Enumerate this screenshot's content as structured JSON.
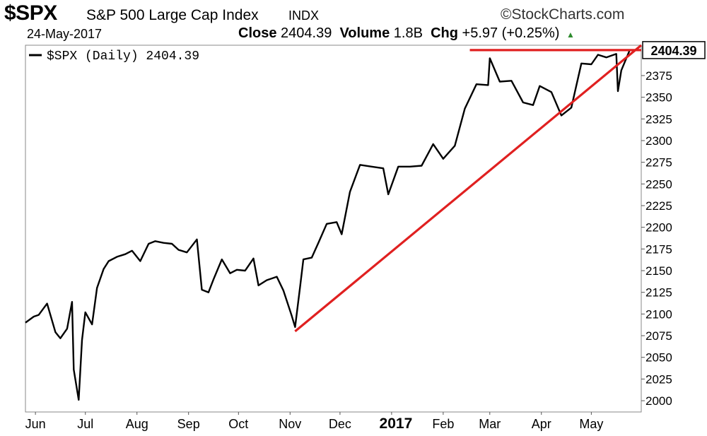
{
  "header": {
    "symbol": "$SPX",
    "name": "S&P 500 Large Cap Index",
    "exchange": "INDX",
    "brand": "©StockCharts.com",
    "date": "24-May-2017",
    "close_label": "Close",
    "close_value": "2404.39",
    "volume_label": "Volume",
    "volume_value": "1.8B",
    "chg_label": "Chg",
    "chg_value": "+5.97 (+0.25%)",
    "chg_arrow": "▲"
  },
  "colors": {
    "price": "#000000",
    "trendline": "#e02020",
    "up": "#2e8b2e"
  },
  "chart_data": {
    "type": "line",
    "legend": "$SPX (Daily) 2404.39",
    "last_value_label": "2404.39",
    "x_ticks": [
      "Jun",
      "Jul",
      "Aug",
      "Sep",
      "Oct",
      "Nov",
      "Dec",
      "2017",
      "Feb",
      "Mar",
      "Apr",
      "May"
    ],
    "x_ticks_bold": [
      "2017"
    ],
    "y_ticks": [
      2000,
      2025,
      2050,
      2075,
      2100,
      2125,
      2150,
      2175,
      2200,
      2225,
      2250,
      2275,
      2300,
      2325,
      2350,
      2375
    ],
    "ylim": [
      1987,
      2410
    ],
    "xlim": [
      "2016-05-26",
      "2017-05-31"
    ],
    "grid": false,
    "legend_position": "top-left",
    "series": [
      {
        "name": "$SPX (Daily)",
        "x": [
          "2016-05-26",
          "2016-05-31",
          "2016-06-03",
          "2016-06-08",
          "2016-06-13",
          "2016-06-16",
          "2016-06-20",
          "2016-06-23",
          "2016-06-24",
          "2016-06-27",
          "2016-06-29",
          "2016-07-01",
          "2016-07-05",
          "2016-07-08",
          "2016-07-12",
          "2016-07-15",
          "2016-07-20",
          "2016-07-25",
          "2016-07-29",
          "2016-08-03",
          "2016-08-08",
          "2016-08-12",
          "2016-08-17",
          "2016-08-22",
          "2016-08-26",
          "2016-08-31",
          "2016-09-06",
          "2016-09-09",
          "2016-09-13",
          "2016-09-16",
          "2016-09-21",
          "2016-09-26",
          "2016-09-30",
          "2016-10-05",
          "2016-10-10",
          "2016-10-13",
          "2016-10-18",
          "2016-10-24",
          "2016-10-28",
          "2016-11-02",
          "2016-11-04",
          "2016-11-07",
          "2016-11-09",
          "2016-11-14",
          "2016-11-18",
          "2016-11-23",
          "2016-11-29",
          "2016-12-02",
          "2016-12-07",
          "2016-12-13",
          "2016-12-20",
          "2016-12-27",
          "2016-12-30",
          "2017-01-05",
          "2017-01-12",
          "2017-01-19",
          "2017-01-26",
          "2017-02-01",
          "2017-02-08",
          "2017-02-14",
          "2017-02-21",
          "2017-02-28",
          "2017-03-01",
          "2017-03-07",
          "2017-03-14",
          "2017-03-21",
          "2017-03-27",
          "2017-03-31",
          "2017-04-07",
          "2017-04-13",
          "2017-04-19",
          "2017-04-25",
          "2017-05-01",
          "2017-05-05",
          "2017-05-10",
          "2017-05-16",
          "2017-05-17",
          "2017-05-19",
          "2017-05-24"
        ],
        "values": [
          2090,
          2097,
          2099,
          2112,
          2079,
          2072,
          2083,
          2114,
          2036,
          2001,
          2070,
          2102,
          2088,
          2130,
          2152,
          2161,
          2166,
          2169,
          2173,
          2161,
          2181,
          2184,
          2182,
          2181,
          2174,
          2171,
          2186,
          2128,
          2125,
          2140,
          2163,
          2147,
          2151,
          2150,
          2164,
          2133,
          2139,
          2143,
          2127,
          2098,
          2085,
          2131,
          2163,
          2165,
          2182,
          2204,
          2206,
          2192,
          2241,
          2272,
          2270,
          2268,
          2238,
          2270,
          2270,
          2271,
          2296,
          2279,
          2294,
          2337,
          2365,
          2364,
          2395,
          2368,
          2369,
          2344,
          2341,
          2363,
          2356,
          2329,
          2338,
          2389,
          2388,
          2399,
          2396,
          2400,
          2357,
          2381,
          2404
        ]
      }
    ],
    "trendlines": [
      {
        "from": {
          "x": "2016-11-04",
          "y": 2080
        },
        "to": {
          "x": "2017-05-31",
          "y": 2410
        }
      },
      {
        "from": {
          "x": "2017-02-17",
          "y": 2404.39
        },
        "to": {
          "x": "2017-05-31",
          "y": 2404.39
        }
      }
    ]
  }
}
